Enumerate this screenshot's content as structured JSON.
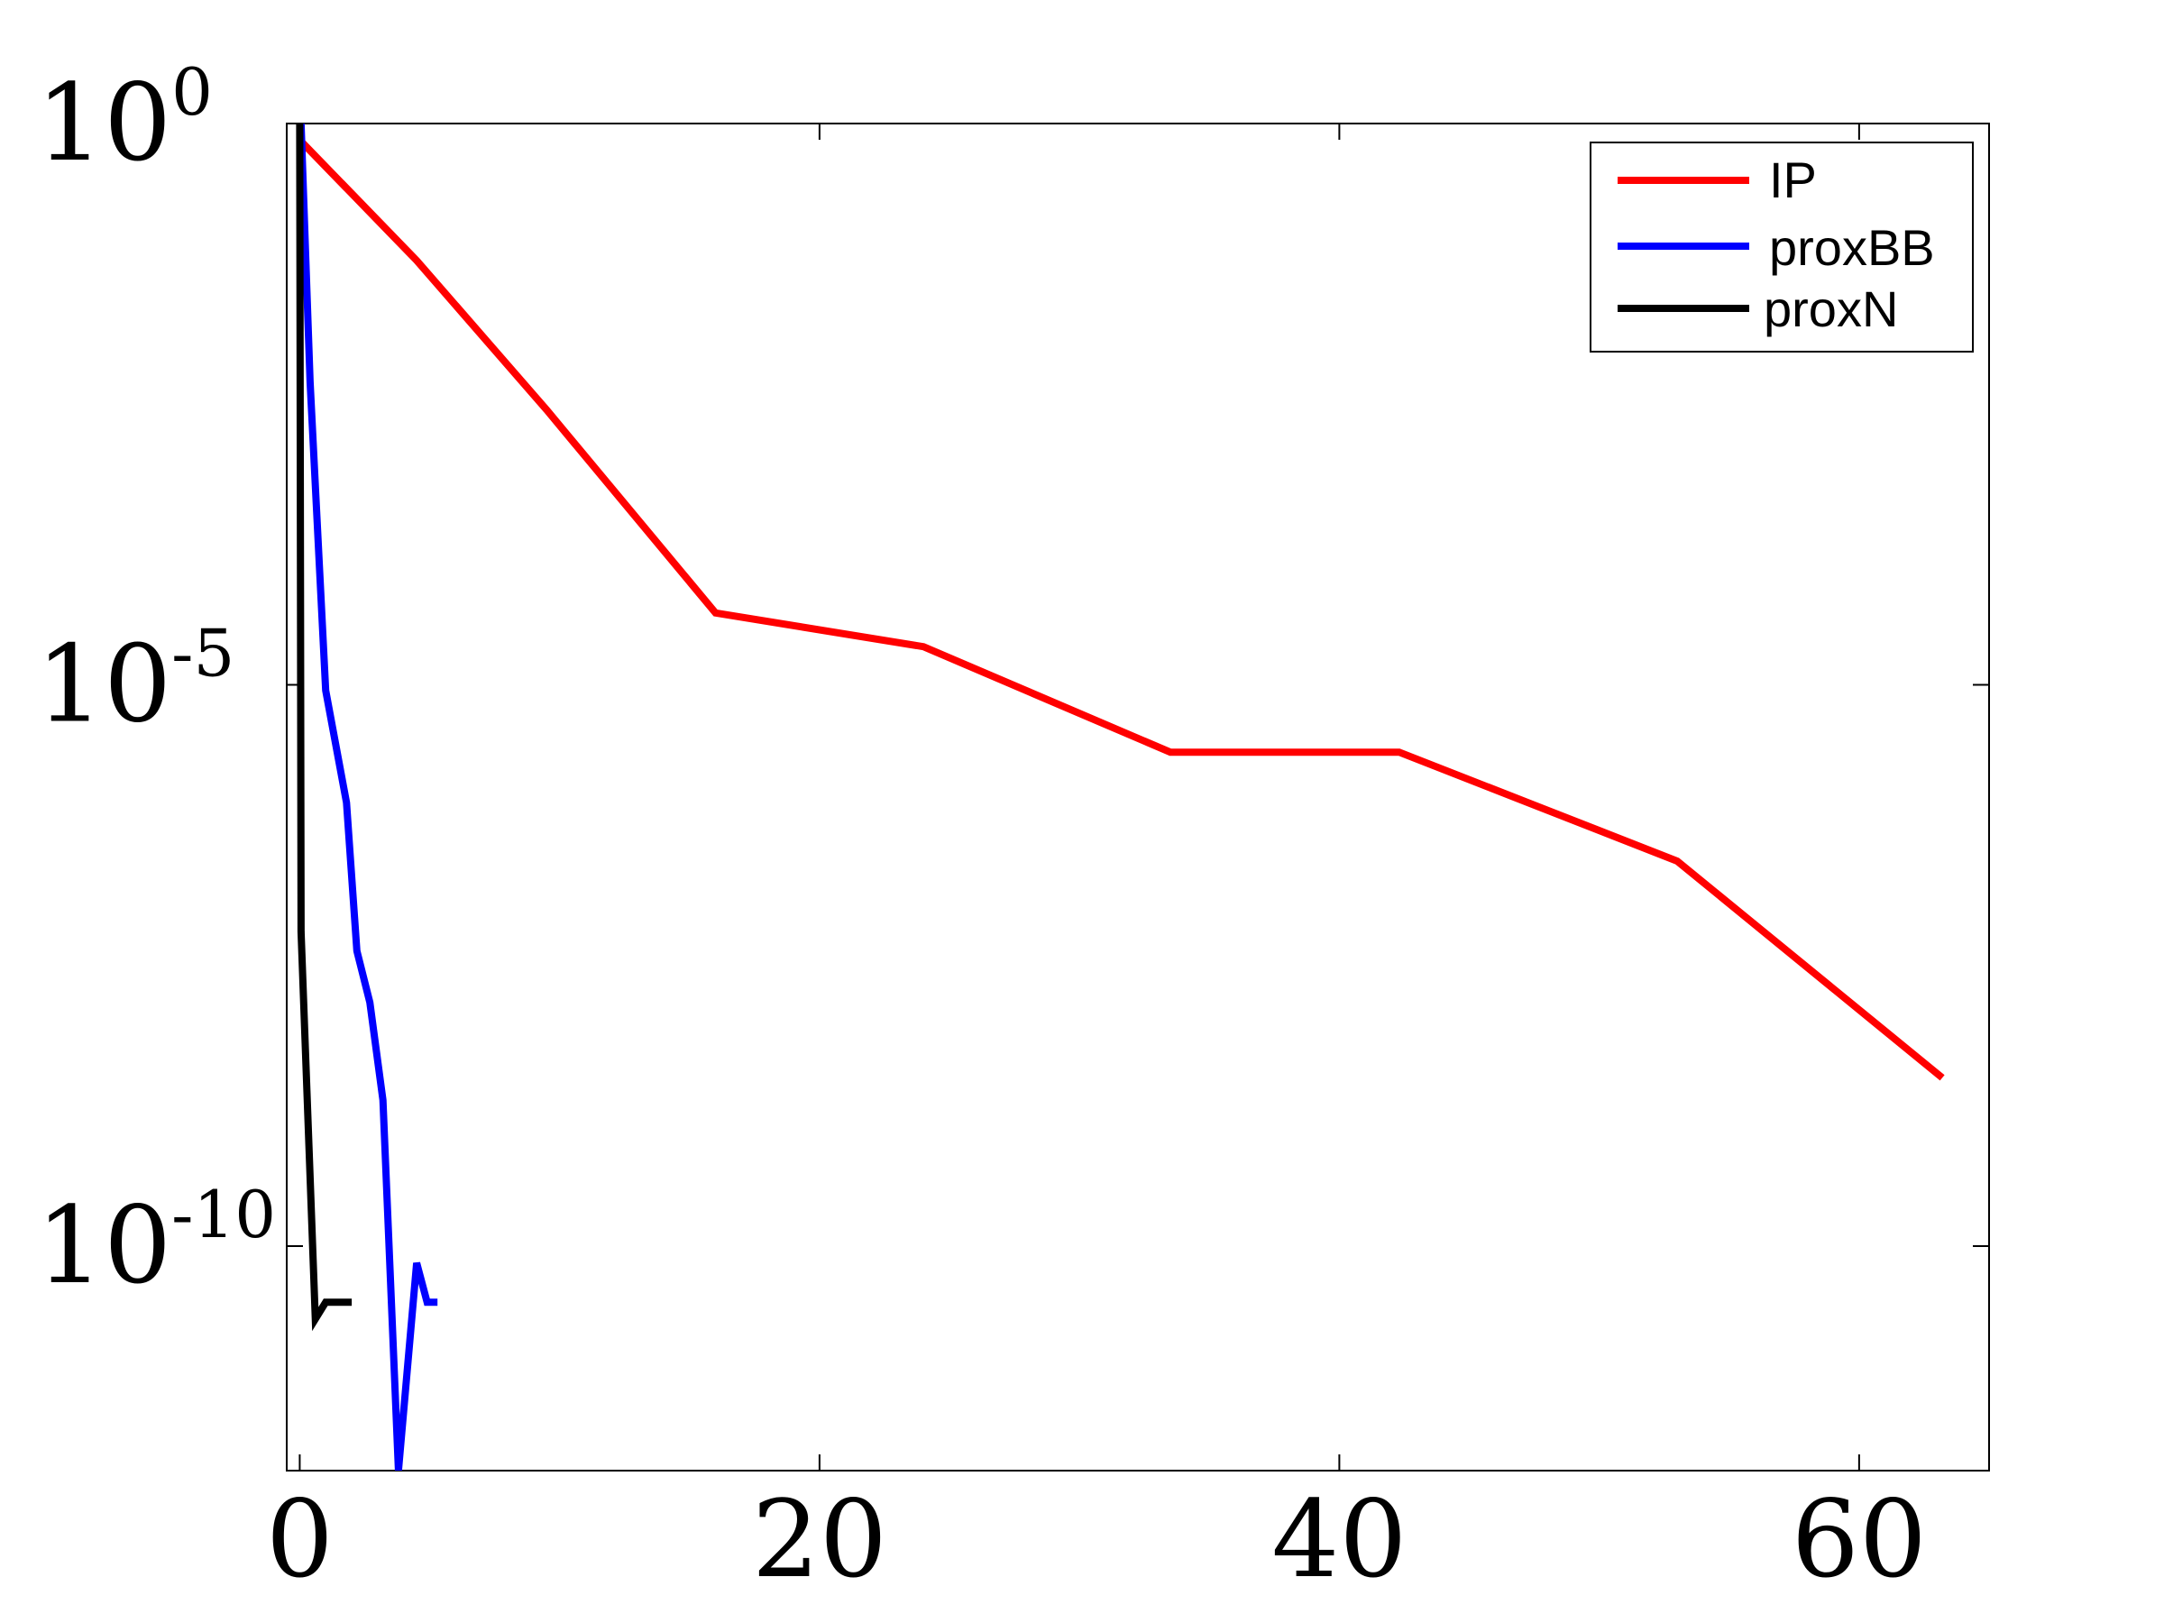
{
  "chart_data": {
    "type": "line",
    "title": "",
    "xlabel": "",
    "ylabel": "",
    "xlim": [
      -0.5,
      65
    ],
    "ylim_exponent": [
      -12,
      0
    ],
    "yscale": "log",
    "grid": false,
    "legend_position": "top-right",
    "x_ticks": [
      {
        "value": 0,
        "label": "0"
      },
      {
        "value": 20,
        "label": "20"
      },
      {
        "value": 40,
        "label": "40"
      },
      {
        "value": 60,
        "label": "60"
      }
    ],
    "y_ticks": [
      {
        "exponent": 0,
        "base": "10",
        "sup": "0"
      },
      {
        "exponent": -5,
        "base": "10",
        "sup": "-5"
      },
      {
        "exponent": -10,
        "base": "10",
        "sup": "-10"
      }
    ],
    "series": [
      {
        "name": "IP",
        "color": "#ff0000",
        "points": [
          [
            0.1,
            -0.17
          ],
          [
            4.5,
            -1.22
          ],
          [
            9.5,
            -2.55
          ],
          [
            16,
            -4.36
          ],
          [
            24,
            -4.66
          ],
          [
            33.5,
            -5.6
          ],
          [
            42.3,
            -5.6
          ],
          [
            53,
            -6.57
          ],
          [
            63.2,
            -8.5
          ]
        ]
      },
      {
        "name": "proxBB",
        "color": "#0000ff",
        "points": [
          [
            0.05,
            0
          ],
          [
            0.4,
            -2.3
          ],
          [
            1.0,
            -5.05
          ],
          [
            1.8,
            -6.05
          ],
          [
            2.2,
            -7.37
          ],
          [
            2.7,
            -7.83
          ],
          [
            3.2,
            -8.7
          ],
          [
            3.8,
            -12.0
          ],
          [
            4.5,
            -10.15
          ],
          [
            4.9,
            -10.5
          ],
          [
            5.3,
            -10.5
          ]
        ]
      },
      {
        "name": "proxN",
        "color": "#000000",
        "points": [
          [
            0.0,
            0
          ],
          [
            0.05,
            -7.2
          ],
          [
            0.6,
            -10.65
          ],
          [
            1.0,
            -10.5
          ],
          [
            2.0,
            -10.5
          ]
        ]
      }
    ]
  }
}
